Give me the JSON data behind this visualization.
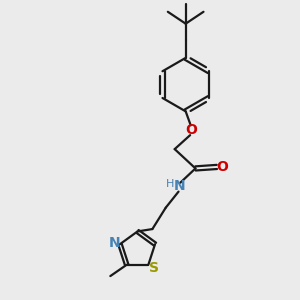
{
  "background_color": "#ebebeb",
  "bond_color": "#1a1a1a",
  "N_label_color": "#4682b4",
  "O_label_color": "#cc0000",
  "S_label_color": "#999900",
  "H_label_color": "#4682b4",
  "figsize": [
    3.0,
    3.0
  ],
  "dpi": 100,
  "xlim": [
    0,
    10
  ],
  "ylim": [
    0,
    10
  ]
}
